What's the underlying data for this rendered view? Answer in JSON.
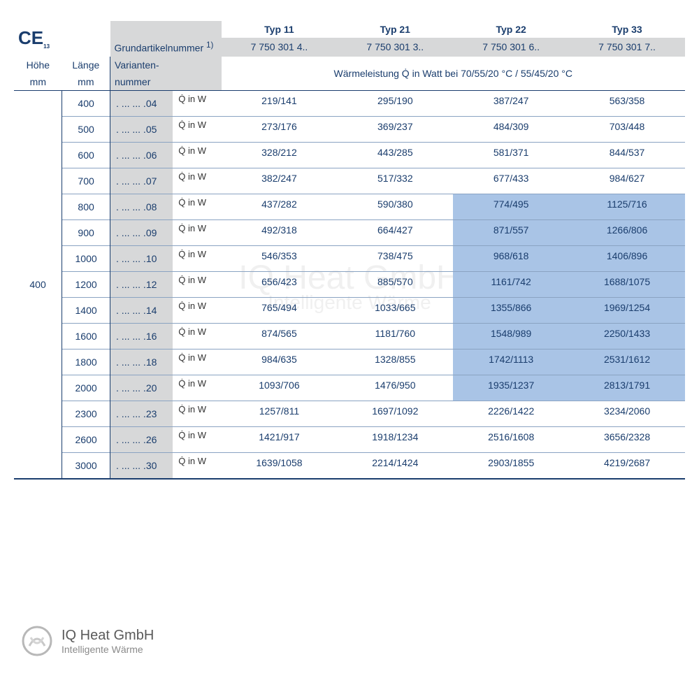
{
  "ce_mark": "CE",
  "ce_sub": "13",
  "types": [
    "Typ 11",
    "Typ 21",
    "Typ 22",
    "Typ 33"
  ],
  "grundartikel_label": "Grundartikelnummer ",
  "grundartikel_sup": "1)",
  "article_numbers": [
    "7 750 301 4..",
    "7 750 301 3..",
    "7 750 301 6..",
    "7 750 301 7.."
  ],
  "hoehe_label": "Höhe",
  "laenge_label": "Länge",
  "mm_label": "mm",
  "varianten_label_1": "Varianten-",
  "varianten_label_2": "nummer",
  "waerme_caption": "Wärmeleistung Q̇ in Watt bei 70/55/20 °C / 55/45/20 °C",
  "q_label": "Q̇ in W",
  "hoehe_value": "400",
  "rows": [
    {
      "laenge": "400",
      "variant": ". ... ... .04",
      "vals": [
        "219/141",
        "295/190",
        "387/247",
        "563/358"
      ]
    },
    {
      "laenge": "500",
      "variant": ". ... ... .05",
      "vals": [
        "273/176",
        "369/237",
        "484/309",
        "703/448"
      ]
    },
    {
      "laenge": "600",
      "variant": ". ... ... .06",
      "vals": [
        "328/212",
        "443/285",
        "581/371",
        "844/537"
      ]
    },
    {
      "laenge": "700",
      "variant": ". ... ... .07",
      "vals": [
        "382/247",
        "517/332",
        "677/433",
        "984/627"
      ]
    },
    {
      "laenge": "800",
      "variant": ". ... ... .08",
      "vals": [
        "437/282",
        "590/380",
        "774/495",
        "1125/716"
      ],
      "hl": [
        2,
        3
      ]
    },
    {
      "laenge": "900",
      "variant": ". ... ... .09",
      "vals": [
        "492/318",
        "664/427",
        "871/557",
        "1266/806"
      ],
      "hl": [
        2,
        3
      ]
    },
    {
      "laenge": "1000",
      "variant": ". ... ... .10",
      "vals": [
        "546/353",
        "738/475",
        "968/618",
        "1406/896"
      ],
      "hl": [
        2,
        3
      ]
    },
    {
      "laenge": "1200",
      "variant": ". ... ... .12",
      "vals": [
        "656/423",
        "885/570",
        "1161/742",
        "1688/1075"
      ],
      "hl": [
        2,
        3
      ]
    },
    {
      "laenge": "1400",
      "variant": ". ... ... .14",
      "vals": [
        "765/494",
        "1033/665",
        "1355/866",
        "1969/1254"
      ],
      "hl": [
        2,
        3
      ]
    },
    {
      "laenge": "1600",
      "variant": ". ... ... .16",
      "vals": [
        "874/565",
        "1181/760",
        "1548/989",
        "2250/1433"
      ],
      "hl": [
        2,
        3
      ]
    },
    {
      "laenge": "1800",
      "variant": ". ... ... .18",
      "vals": [
        "984/635",
        "1328/855",
        "1742/1113",
        "2531/1612"
      ],
      "hl": [
        2,
        3
      ]
    },
    {
      "laenge": "2000",
      "variant": ". ... ... .20",
      "vals": [
        "1093/706",
        "1476/950",
        "1935/1237",
        "2813/1791"
      ],
      "hl": [
        2,
        3
      ]
    },
    {
      "laenge": "2300",
      "variant": ". ... ... .23",
      "vals": [
        "1257/811",
        "1697/1092",
        "2226/1422",
        "3234/2060"
      ]
    },
    {
      "laenge": "2600",
      "variant": ". ... ... .26",
      "vals": [
        "1421/917",
        "1918/1234",
        "2516/1608",
        "3656/2328"
      ]
    },
    {
      "laenge": "3000",
      "variant": ". ... ... .30",
      "vals": [
        "1639/1058",
        "2214/1424",
        "2903/1855",
        "4219/2687"
      ]
    }
  ],
  "watermark_main": "IQ Heat GmbH",
  "watermark_sub": "Intelligente Wärme",
  "footer_company": "IQ Heat GmbH",
  "footer_tagline": "Intelligente Wärme",
  "colors": {
    "text": "#1a3d6d",
    "grey_bg": "#d7d8d9",
    "highlight": "#a9c4e6",
    "line": "#1a3d6d",
    "line_light": "#8aa3c2",
    "background": "#ffffff"
  }
}
